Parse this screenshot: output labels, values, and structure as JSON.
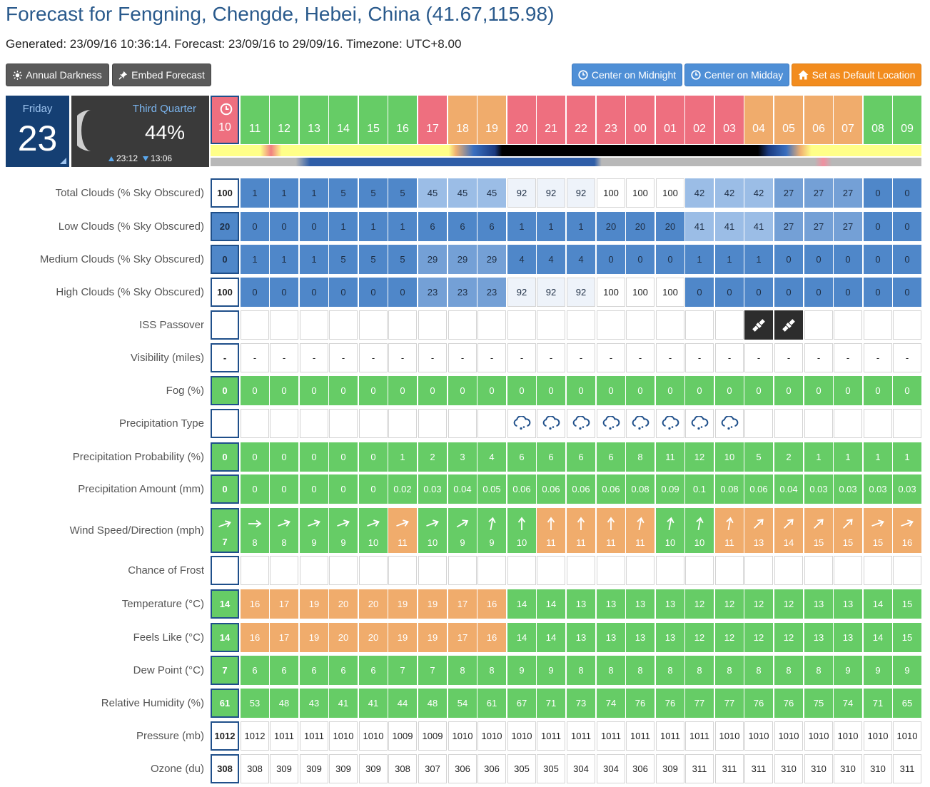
{
  "header": {
    "title": "Forecast for Fengning, Chengde, Hebei, China (41.67,115.98)",
    "generated": "Generated: 23/09/16 10:36:14. Forecast: 23/09/16 to 29/09/16. Timezone: UTC+8.00"
  },
  "buttons": {
    "annual_darkness": "Annual Darkness",
    "embed_forecast": "Embed Forecast",
    "center_midnight": "Center on Midnight",
    "center_midday": "Center on Midday",
    "set_default": "Set as Default Location"
  },
  "day": {
    "name": "Friday",
    "number": "23"
  },
  "moon": {
    "phase": "Third Quarter",
    "illumination": "44%",
    "rise": "23:12",
    "set": "13:06"
  },
  "colors": {
    "green": "#66cc66",
    "orange": "#f0ac6c",
    "red": "#ee6f7f",
    "blue1": "#4f87c9",
    "blue2": "#74a0d6",
    "blue3": "#9bbde6",
    "blue4": "#eef3fa",
    "header_blue": "#153f73",
    "accent_button_blue": "#4f8fd6",
    "accent_button_orange": "#f28c1e"
  },
  "hours": [
    {
      "label": "10",
      "status": "red"
    },
    {
      "label": "11",
      "status": "green"
    },
    {
      "label": "12",
      "status": "green"
    },
    {
      "label": "13",
      "status": "green"
    },
    {
      "label": "14",
      "status": "green"
    },
    {
      "label": "15",
      "status": "green"
    },
    {
      "label": "16",
      "status": "green"
    },
    {
      "label": "17",
      "status": "red"
    },
    {
      "label": "18",
      "status": "orange"
    },
    {
      "label": "19",
      "status": "orange"
    },
    {
      "label": "20",
      "status": "red"
    },
    {
      "label": "21",
      "status": "red"
    },
    {
      "label": "22",
      "status": "red"
    },
    {
      "label": "23",
      "status": "red"
    },
    {
      "label": "00",
      "status": "red"
    },
    {
      "label": "01",
      "status": "red"
    },
    {
      "label": "02",
      "status": "red"
    },
    {
      "label": "03",
      "status": "red"
    },
    {
      "label": "04",
      "status": "orange"
    },
    {
      "label": "05",
      "status": "orange"
    },
    {
      "label": "06",
      "status": "orange"
    },
    {
      "label": "07",
      "status": "orange"
    },
    {
      "label": "08",
      "status": "green"
    },
    {
      "label": "09",
      "status": "green"
    }
  ],
  "rows": [
    {
      "label": "Total Clouds (% Sky Obscured)",
      "type": "clouds",
      "values": [
        "100",
        "1",
        "1",
        "1",
        "5",
        "5",
        "5",
        "45",
        "45",
        "45",
        "92",
        "92",
        "92",
        "100",
        "100",
        "100",
        "42",
        "42",
        "42",
        "27",
        "27",
        "27",
        "0",
        "0"
      ]
    },
    {
      "label": "Low Clouds (% Sky Obscured)",
      "type": "clouds",
      "values": [
        "20",
        "0",
        "0",
        "0",
        "1",
        "1",
        "1",
        "6",
        "6",
        "6",
        "1",
        "1",
        "1",
        "20",
        "20",
        "20",
        "41",
        "41",
        "41",
        "27",
        "27",
        "27",
        "0",
        "0"
      ]
    },
    {
      "label": "Medium Clouds (% Sky Obscured)",
      "type": "clouds",
      "values": [
        "0",
        "1",
        "1",
        "1",
        "5",
        "5",
        "5",
        "29",
        "29",
        "29",
        "4",
        "4",
        "4",
        "0",
        "0",
        "0",
        "1",
        "1",
        "1",
        "0",
        "0",
        "0",
        "0",
        "0"
      ]
    },
    {
      "label": "High Clouds (% Sky Obscured)",
      "type": "clouds",
      "values": [
        "100",
        "0",
        "0",
        "0",
        "0",
        "0",
        "0",
        "23",
        "23",
        "23",
        "92",
        "92",
        "92",
        "100",
        "100",
        "100",
        "0",
        "0",
        "0",
        "0",
        "0",
        "0",
        "0",
        "0"
      ]
    },
    {
      "label": "ISS Passover",
      "type": "iss",
      "values": [
        "",
        "",
        "",
        "",
        "",
        "",
        "",
        "",
        "",
        "",
        "",
        "",
        "",
        "",
        "",
        "",
        "",
        "",
        "iss",
        "iss",
        "",
        "",
        "",
        ""
      ]
    },
    {
      "label": "Visibility (miles)",
      "type": "plain",
      "values": [
        "-",
        "-",
        "-",
        "-",
        "-",
        "-",
        "-",
        "-",
        "-",
        "-",
        "-",
        "-",
        "-",
        "-",
        "-",
        "-",
        "-",
        "-",
        "-",
        "-",
        "-",
        "-",
        "-",
        "-"
      ]
    },
    {
      "label": "Fog (%)",
      "type": "green",
      "values": [
        "0",
        "0",
        "0",
        "0",
        "0",
        "0",
        "0",
        "0",
        "0",
        "0",
        "0",
        "0",
        "0",
        "0",
        "0",
        "0",
        "0",
        "0",
        "0",
        "0",
        "0",
        "0",
        "0",
        "0"
      ]
    },
    {
      "label": "Precipitation Type",
      "type": "precip",
      "values": [
        "",
        "",
        "",
        "",
        "",
        "",
        "",
        "",
        "",
        "",
        "rain",
        "rain",
        "rain",
        "rain",
        "rain",
        "rain",
        "rain",
        "rain",
        "",
        "",
        "",
        "",
        "",
        ""
      ]
    },
    {
      "label": "Precipitation Probability (%)",
      "type": "green",
      "values": [
        "0",
        "0",
        "0",
        "0",
        "0",
        "0",
        "1",
        "2",
        "3",
        "4",
        "6",
        "6",
        "6",
        "6",
        "8",
        "11",
        "12",
        "10",
        "5",
        "2",
        "1",
        "1",
        "1",
        "1"
      ]
    },
    {
      "label": "Precipitation Amount (mm)",
      "type": "green",
      "values": [
        "0",
        "0",
        "0",
        "0",
        "0",
        "0",
        "0.02",
        "0.03",
        "0.04",
        "0.05",
        "0.06",
        "0.06",
        "0.06",
        "0.06",
        "0.08",
        "0.09",
        "0.1",
        "0.08",
        "0.06",
        "0.04",
        "0.03",
        "0.03",
        "0.03",
        "0.03"
      ]
    },
    {
      "label": "Wind Speed/Direction (mph)",
      "type": "wind",
      "values": [
        "7",
        "8",
        "8",
        "9",
        "9",
        "10",
        "11",
        "10",
        "9",
        "9",
        "10",
        "11",
        "11",
        "11",
        "11",
        "10",
        "10",
        "11",
        "13",
        "14",
        "15",
        "15",
        "15",
        "16"
      ],
      "directions": [
        70,
        90,
        70,
        70,
        70,
        70,
        70,
        70,
        60,
        10,
        0,
        0,
        0,
        0,
        10,
        10,
        10,
        10,
        45,
        45,
        45,
        45,
        70,
        70
      ],
      "status": [
        "green",
        "green",
        "green",
        "green",
        "green",
        "green",
        "orange",
        "green",
        "green",
        "green",
        "green",
        "orange",
        "orange",
        "orange",
        "orange",
        "green",
        "green",
        "orange",
        "orange",
        "orange",
        "orange",
        "orange",
        "orange",
        "orange"
      ]
    },
    {
      "label": "Chance of Frost",
      "type": "plain",
      "values": [
        "",
        "",
        "",
        "",
        "",
        "",
        "",
        "",
        "",
        "",
        "",
        "",
        "",
        "",
        "",
        "",
        "",
        "",
        "",
        "",
        "",
        "",
        "",
        ""
      ]
    },
    {
      "label": "Temperature (°C)",
      "type": "temp",
      "values": [
        "14",
        "16",
        "17",
        "19",
        "20",
        "20",
        "19",
        "19",
        "17",
        "16",
        "14",
        "14",
        "13",
        "13",
        "13",
        "13",
        "12",
        "12",
        "12",
        "12",
        "13",
        "13",
        "14",
        "15"
      ]
    },
    {
      "label": "Feels Like (°C)",
      "type": "temp",
      "values": [
        "14",
        "16",
        "17",
        "19",
        "20",
        "20",
        "19",
        "19",
        "17",
        "16",
        "14",
        "14",
        "13",
        "13",
        "13",
        "13",
        "12",
        "12",
        "12",
        "12",
        "13",
        "13",
        "14",
        "15"
      ]
    },
    {
      "label": "Dew Point (°C)",
      "type": "green",
      "values": [
        "7",
        "6",
        "6",
        "6",
        "6",
        "6",
        "7",
        "7",
        "8",
        "8",
        "9",
        "9",
        "8",
        "8",
        "8",
        "8",
        "8",
        "8",
        "8",
        "8",
        "8",
        "9",
        "9",
        "9"
      ]
    },
    {
      "label": "Relative Humidity (%)",
      "type": "green",
      "values": [
        "61",
        "53",
        "48",
        "43",
        "41",
        "41",
        "44",
        "48",
        "54",
        "61",
        "67",
        "71",
        "73",
        "74",
        "76",
        "76",
        "77",
        "77",
        "76",
        "76",
        "75",
        "74",
        "71",
        "65"
      ]
    },
    {
      "label": "Pressure (mb)",
      "type": "plain",
      "values": [
        "1012",
        "1012",
        "1011",
        "1011",
        "1010",
        "1010",
        "1009",
        "1009",
        "1010",
        "1010",
        "1010",
        "1011",
        "1011",
        "1011",
        "1011",
        "1011",
        "1011",
        "1010",
        "1010",
        "1010",
        "1010",
        "1010",
        "1010",
        "1010"
      ]
    },
    {
      "label": "Ozone (du)",
      "type": "plain",
      "values": [
        "308",
        "308",
        "309",
        "309",
        "309",
        "309",
        "308",
        "307",
        "306",
        "306",
        "305",
        "305",
        "304",
        "304",
        "306",
        "309",
        "311",
        "311",
        "311",
        "310",
        "310",
        "310",
        "310",
        "311"
      ]
    }
  ]
}
